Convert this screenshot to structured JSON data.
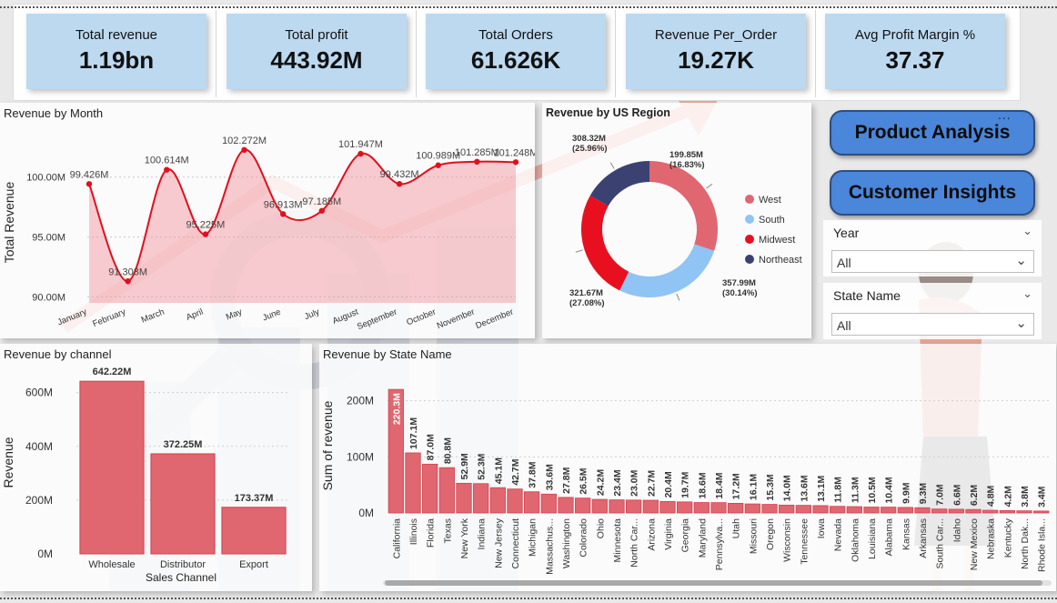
{
  "kpis": [
    {
      "label": "Total revenue",
      "value": "1.19bn"
    },
    {
      "label": "Total profit",
      "value": "443.92M"
    },
    {
      "label": "Total Orders",
      "value": "61.626K"
    },
    {
      "label": "Revenue Per_Order",
      "value": "19.27K"
    },
    {
      "label": "Avg Profit Margin %",
      "value": "37.37"
    }
  ],
  "nav": {
    "product": "Product Analysis",
    "customer": "Customer Insights",
    "more_icon": "..."
  },
  "slicers": {
    "year": {
      "title": "Year",
      "value": "All"
    },
    "state": {
      "title": "State Name",
      "value": "All"
    }
  },
  "colors": {
    "accent": "#e0101d",
    "bar": "#e06670",
    "west": "#e06670",
    "south": "#8fc4f5",
    "midwest": "#e8101f",
    "northeast": "#3b4272",
    "kpi": "#bcd9f0",
    "button": "#4a86d9"
  },
  "chart_data": [
    {
      "type": "area",
      "title": "Revenue by Month",
      "ylabel": "Total Revenue",
      "xlabel": "",
      "ylim": [
        89.5,
        103.7
      ],
      "yticks": [
        90,
        95,
        100
      ],
      "yticklabels": [
        "90.00M",
        "95.00M",
        "100.00M"
      ],
      "categories": [
        "January",
        "February",
        "March",
        "April",
        "May",
        "June",
        "July",
        "August",
        "September",
        "October",
        "November",
        "December"
      ],
      "values": [
        99.426,
        91.303,
        100.614,
        95.225,
        102.272,
        96.913,
        97.185,
        101.947,
        99.432,
        100.989,
        101.285,
        101.248
      ],
      "labels": [
        "99.426M",
        "91.303M",
        "100.614M",
        "95.225M",
        "102.272M",
        "96.913M",
        "97.185M",
        "101.947M",
        "99.432M",
        "100.989M",
        "101.285M",
        "101.248M"
      ]
    },
    {
      "type": "pie",
      "title": "Revenue by US Region",
      "legend": "right",
      "slices": [
        {
          "name": "West",
          "value": 357.99,
          "label": "357.99M",
          "pct": "(30.14%)"
        },
        {
          "name": "South",
          "value": 321.67,
          "label": "321.67M",
          "pct": "(27.08%)"
        },
        {
          "name": "Midwest",
          "value": 308.32,
          "label": "308.32M",
          "pct": "(25.96%)"
        },
        {
          "name": "Northeast",
          "value": 199.85,
          "label": "199.85M",
          "pct": "(16.83%)"
        }
      ]
    },
    {
      "type": "bar",
      "title": "Revenue by channel",
      "xlabel": "Sales Channel",
      "ylabel": "Revenue",
      "ylim": [
        0,
        680
      ],
      "yticks": [
        0,
        200,
        400,
        600
      ],
      "yticklabels": [
        "0M",
        "200M",
        "400M",
        "600M"
      ],
      "categories": [
        "Wholesale",
        "Distributor",
        "Export"
      ],
      "values": [
        642.22,
        372.25,
        173.37
      ],
      "labels": [
        "642.22M",
        "372.25M",
        "173.37M"
      ]
    },
    {
      "type": "bar",
      "title": "Revenue by State Name",
      "xlabel": "",
      "ylabel": "Sum of revenue",
      "ylim": [
        0,
        240
      ],
      "yticks": [
        0,
        100,
        200
      ],
      "yticklabels": [
        "0M",
        "100M",
        "200M"
      ],
      "categories": [
        "California",
        "Illinois",
        "Florida",
        "Texas",
        "New York",
        "Indiana",
        "New Jersey",
        "Connecticut",
        "Michigan",
        "Massachus...",
        "Washington",
        "Colorado",
        "Ohio",
        "Minnesota",
        "North Car...",
        "Arizona",
        "Virginia",
        "Georgia",
        "Maryland",
        "Pennsylva...",
        "Utah",
        "Missouri",
        "Oregon",
        "Wisconsin",
        "Tennessee",
        "Iowa",
        "Nevada",
        "Oklahoma",
        "Louisiana",
        "Alabama",
        "Kansas",
        "Arkansas",
        "South Car...",
        "Idaho",
        "New Mexico",
        "Nebraska",
        "Kentucky",
        "North Dak...",
        "Rhode Isla..."
      ],
      "values": [
        220.3,
        107.1,
        87.0,
        80.8,
        52.9,
        52.3,
        45.1,
        42.7,
        37.8,
        33.6,
        27.8,
        26.5,
        24.2,
        23.4,
        23.0,
        22.7,
        20.4,
        19.7,
        18.6,
        18.4,
        17.2,
        16.1,
        15.3,
        14.0,
        13.6,
        13.1,
        11.8,
        11.3,
        10.5,
        10.4,
        9.9,
        9.3,
        7.0,
        6.6,
        6.2,
        4.8,
        4.2,
        3.8,
        3.4
      ],
      "labels": [
        "220.3M",
        "107.1M",
        "87.0M",
        "80.8M",
        "52.9M",
        "52.3M",
        "45.1M",
        "42.7M",
        "37.8M",
        "33.6M",
        "27.8M",
        "26.5M",
        "24.2M",
        "23.4M",
        "23.0M",
        "22.7M",
        "20.4M",
        "19.7M",
        "18.6M",
        "18.4M",
        "17.2M",
        "16.1M",
        "15.3M",
        "14.0M",
        "13.6M",
        "13.1M",
        "11.8M",
        "11.3M",
        "10.5M",
        "10.4M",
        "9.9M",
        "9.3M",
        "7.0M",
        "6.6M",
        "6.2M",
        "4.8M",
        "4.2M",
        "3.8M",
        "3.4M"
      ]
    }
  ]
}
